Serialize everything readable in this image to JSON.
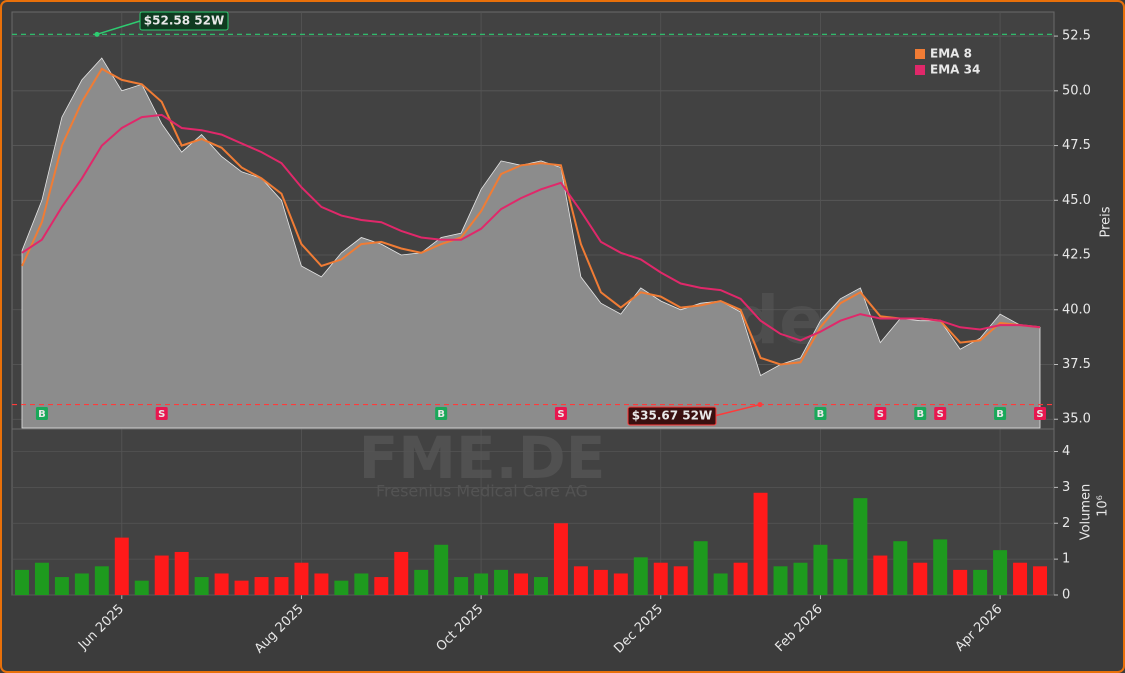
{
  "chart_data": {
    "type": "area",
    "watermark": "forexsignale.trade",
    "ticker": "FME.DE",
    "company": "Fresenius Medical Care AG",
    "ylabel": "Preis",
    "ylim": [
      34.6,
      53.6
    ],
    "yticks": [
      {
        "value": 35,
        "label": "35.0"
      },
      37.5,
      {
        "value": 40,
        "label": "40.0"
      },
      42.5,
      {
        "value": 45,
        "label": "45.0"
      },
      47.5,
      {
        "value": 50,
        "label": "50.0"
      },
      52.5
    ],
    "grid": true,
    "legend": "upper right",
    "categories": [
      null,
      null,
      null,
      null,
      null,
      "Jun 2025",
      null,
      null,
      null,
      null,
      null,
      null,
      null,
      null,
      "Aug 2025",
      null,
      null,
      null,
      null,
      null,
      null,
      null,
      null,
      "Oct 2025",
      null,
      null,
      null,
      null,
      null,
      null,
      null,
      null,
      "Dec 2025",
      null,
      null,
      null,
      null,
      null,
      null,
      null,
      "Feb 2026",
      null,
      null,
      null,
      null,
      null,
      null,
      null,
      null,
      "Apr 2026",
      null,
      null
    ],
    "series": [
      {
        "color": "#8c8c8c",
        "values": [
          42.7,
          45,
          48.8,
          50.5,
          51.5,
          50,
          50.3,
          48.5,
          47.2,
          48,
          47,
          46.3,
          46,
          45,
          42,
          41.5,
          42.6,
          43.3,
          43,
          42.5,
          42.6,
          43.3,
          43.5,
          45.5,
          46.8,
          46.6,
          46.8,
          46.5,
          41.5,
          40.3,
          39.8,
          41,
          40.4,
          40,
          40.3,
          40.4,
          39.9,
          37,
          37.5,
          37.8,
          39.5,
          40.5,
          41,
          38.5,
          39.6,
          39.5,
          39.5,
          38.2,
          38.7,
          39.8,
          39.3,
          39.2
        ]
      },
      {
        "name": "EMA 8",
        "color": "#f07c35",
        "values": [
          42,
          44,
          47.5,
          49.5,
          51,
          50.5,
          50.3,
          49.5,
          47.5,
          47.8,
          47.4,
          46.5,
          46,
          45.3,
          43,
          42,
          42.3,
          43,
          43.1,
          42.8,
          42.6,
          43,
          43.3,
          44.5,
          46.2,
          46.6,
          46.7,
          46.6,
          43,
          40.8,
          40.1,
          40.8,
          40.6,
          40.1,
          40.2,
          40.4,
          40,
          37.8,
          37.5,
          37.6,
          39.2,
          40.3,
          40.8,
          39.7,
          39.6,
          39.6,
          39.5,
          38.5,
          38.6,
          39.4,
          39.3,
          39.2
        ]
      },
      {
        "name": "EMA 34",
        "color": "#e0286a",
        "values": [
          42.6,
          43.2,
          44.7,
          46,
          47.5,
          48.3,
          48.8,
          48.9,
          48.3,
          48.2,
          48,
          47.6,
          47.2,
          46.7,
          45.6,
          44.7,
          44.3,
          44.1,
          44,
          43.6,
          43.3,
          43.2,
          43.2,
          43.7,
          44.6,
          45.1,
          45.5,
          45.8,
          44.5,
          43.1,
          42.6,
          42.3,
          41.7,
          41.2,
          41,
          40.9,
          40.5,
          39.5,
          38.9,
          38.6,
          39,
          39.5,
          39.8,
          39.6,
          39.6,
          39.6,
          39.5,
          39.2,
          39.1,
          39.3,
          39.3,
          39.2
        ]
      }
    ],
    "signals": [
      null,
      "B",
      null,
      null,
      null,
      null,
      null,
      "S",
      null,
      null,
      null,
      null,
      null,
      null,
      null,
      null,
      null,
      null,
      null,
      null,
      null,
      "B",
      null,
      null,
      null,
      null,
      null,
      "S",
      null,
      null,
      null,
      null,
      null,
      null,
      null,
      null,
      null,
      null,
      null,
      null,
      "B",
      null,
      null,
      "S",
      null,
      "B",
      "S",
      null,
      null,
      "B",
      null,
      "S"
    ],
    "buy_color": "#1aa85a",
    "sell_color": "#e8174f",
    "annotations": [
      {
        "label": "$52.58 52W",
        "value": 52.58,
        "color": "#2ecc71"
      },
      {
        "label": "$35.67 52W",
        "value": 35.67,
        "color": "#ff3a3a"
      }
    ],
    "volume": {
      "type": "bar",
      "ylabel": "Volumen",
      "scale_label": "10⁶",
      "ylim": [
        0,
        4.6
      ],
      "yticks": [
        0,
        1,
        2,
        3,
        4
      ],
      "up_color": "#1e9a1e",
      "down_color": "#ff1a1a",
      "values": [
        0.7,
        0.9,
        0.5,
        0.6,
        0.8,
        1.6,
        0.4,
        1.1,
        1.2,
        0.5,
        0.6,
        0.4,
        0.5,
        0.5,
        0.9,
        0.6,
        0.4,
        0.6,
        0.5,
        1.2,
        0.7,
        1.4,
        0.5,
        0.6,
        0.7,
        0.6,
        0.5,
        2.0,
        0.8,
        0.7,
        0.6,
        1.05,
        0.9,
        0.8,
        1.5,
        0.6,
        0.9,
        2.85,
        0.8,
        0.9,
        1.4,
        1.0,
        2.7,
        1.1,
        1.5,
        0.9,
        1.55,
        0.7,
        0.7,
        1.25,
        0.9,
        0.8
      ]
    }
  }
}
